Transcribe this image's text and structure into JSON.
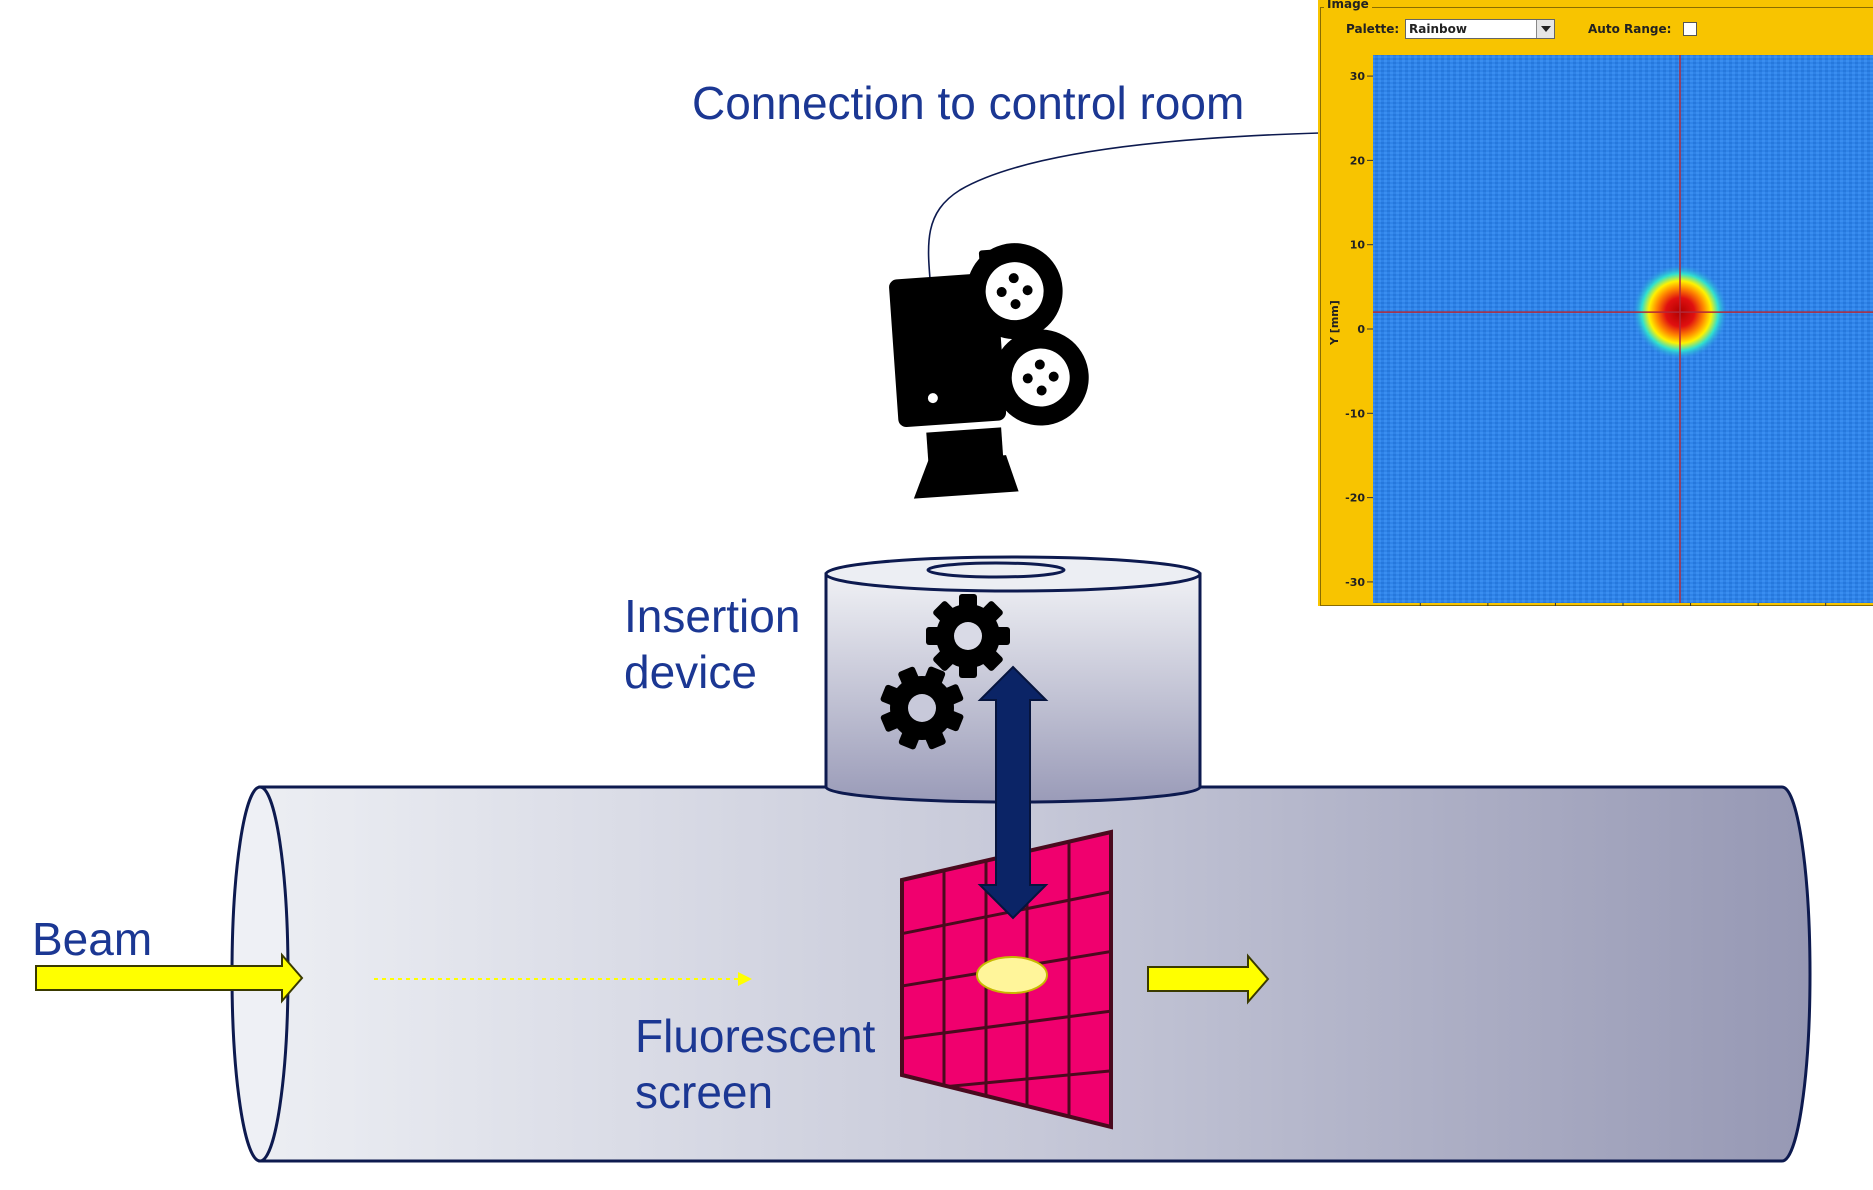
{
  "labels": {
    "connection": "Connection to control room",
    "insertion": [
      "Insertion",
      "device"
    ],
    "beam": "Beam",
    "fluorescent": [
      "Fluorescent",
      "screen"
    ]
  },
  "panel": {
    "title": "Image",
    "palette_label": "Palette:",
    "palette_value": "Rainbow",
    "auto_range_label": "Auto Range:",
    "auto_range_checked": false,
    "y_axis_label": "Y [mm]",
    "y_ticks": [
      30,
      20,
      10,
      0,
      -10,
      -20,
      -30
    ],
    "y_range": [
      -32.5,
      32.5
    ],
    "beam_spot": {
      "x": 0.0,
      "y": 2.0
    },
    "crosshair": {
      "x": 0.0,
      "y": 2.0
    }
  },
  "colors": {
    "label_text": "#1b3793",
    "panel_bg": "#f8c400",
    "plot_bg": "#2f83e8",
    "screen": "#f0006e",
    "beam_arrow": "#ffff00",
    "actuator_arrow": "#0b2466",
    "crosshair": "#b02a3a"
  },
  "icons": [
    "camera-icon",
    "gear-icon"
  ]
}
